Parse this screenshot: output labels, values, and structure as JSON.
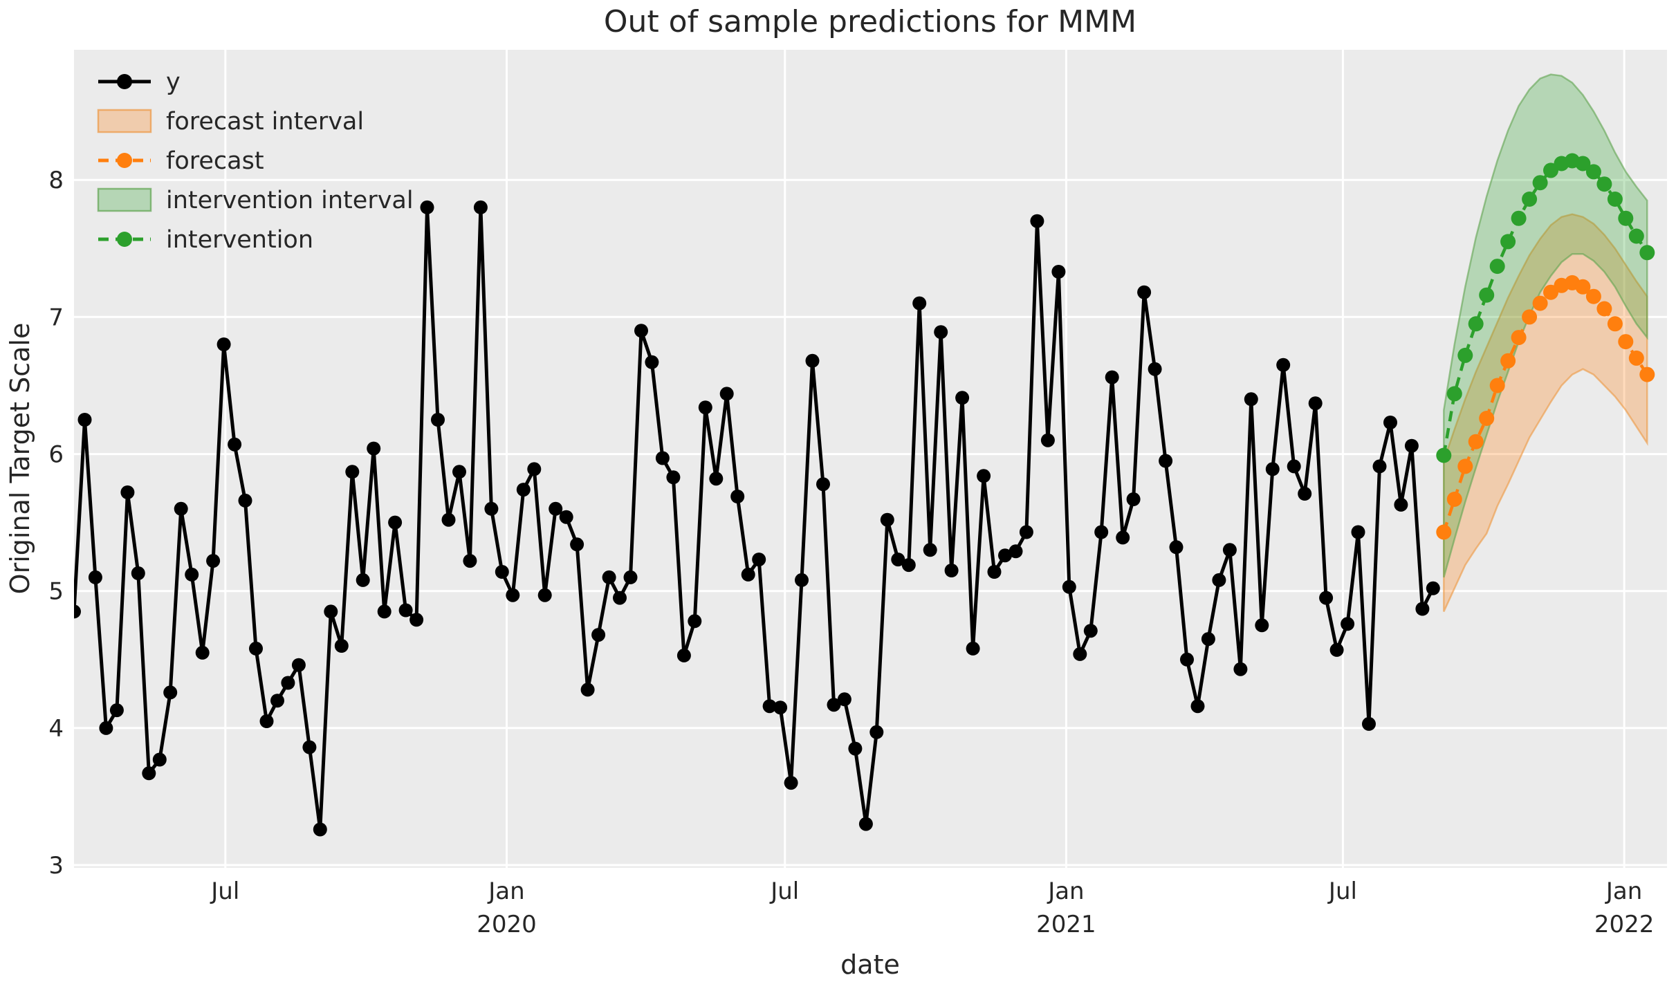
{
  "figure": {
    "background": "#ffffff",
    "axes_background": "#ebebeb",
    "grid_color": "#ffffff",
    "text_color": "#262626"
  },
  "legend": {
    "position": "upper-left",
    "items": [
      {
        "label": "y",
        "glyph": "line-marker-icon",
        "type": "line",
        "color": "#000000"
      },
      {
        "label": "forecast interval",
        "glyph": "patch-icon",
        "type": "patch",
        "color": "rgba(255,127,14,0.28)",
        "edge": "rgba(237,151,65,0.7)"
      },
      {
        "label": "forecast",
        "glyph": "dashed-marker-icon",
        "type": "dashed",
        "color": "#ff7f0e"
      },
      {
        "label": "intervention interval",
        "glyph": "patch-icon",
        "type": "patch",
        "color": "rgba(44,160,44,0.28)",
        "edge": "rgba(96,164,80,0.7)"
      },
      {
        "label": "intervention",
        "glyph": "dashed-marker-icon",
        "type": "dashed",
        "color": "#2ca02c"
      }
    ]
  },
  "chart_data": {
    "type": "line",
    "title": "Out of sample predictions for MMM",
    "xlabel": "date",
    "ylabel": "Original Target Scale",
    "x_domain": [
      "2019-03-24",
      "2022-01-29"
    ],
    "ylim": [
      2.98,
      8.95
    ],
    "grid": true,
    "yticks": [
      3,
      4,
      5,
      6,
      7,
      8
    ],
    "xticks": [
      {
        "date": "2019-07-01",
        "label": "Jul"
      },
      {
        "date": "2020-01-01",
        "label": "Jan",
        "sublabel": "2020"
      },
      {
        "date": "2020-07-01",
        "label": "Jul"
      },
      {
        "date": "2021-01-01",
        "label": "Jan",
        "sublabel": "2021"
      },
      {
        "date": "2021-07-01",
        "label": "Jul"
      },
      {
        "date": "2022-01-01",
        "label": "Jan",
        "sublabel": "2022"
      }
    ],
    "series": [
      {
        "name": "y",
        "type": "line-marker",
        "color": "#000000",
        "start": "2019-03-24",
        "freq_days": 7,
        "values": [
          4.85,
          6.25,
          5.1,
          4.0,
          4.13,
          5.72,
          5.13,
          3.67,
          3.77,
          4.26,
          5.6,
          5.12,
          4.55,
          5.22,
          6.8,
          6.07,
          5.66,
          4.58,
          4.05,
          4.2,
          4.33,
          4.46,
          3.86,
          3.26,
          4.85,
          4.6,
          5.87,
          5.08,
          6.04,
          4.85,
          5.5,
          4.86,
          4.79,
          7.8,
          6.25,
          5.52,
          5.87,
          5.22,
          7.8,
          5.6,
          5.14,
          4.97,
          5.74,
          5.89,
          4.97,
          5.6,
          5.54,
          5.34,
          4.28,
          4.68,
          5.1,
          4.95,
          5.1,
          6.9,
          6.67,
          5.97,
          5.83,
          4.53,
          4.78,
          6.34,
          5.82,
          6.44,
          5.69,
          5.12,
          5.23,
          4.16,
          4.15,
          3.6,
          5.08,
          6.68,
          5.78,
          4.17,
          4.21,
          3.85,
          3.3,
          3.97,
          5.52,
          5.23,
          5.19,
          7.1,
          5.3,
          6.89,
          5.15,
          6.41,
          4.58,
          5.84,
          5.14,
          5.26,
          5.29,
          5.43,
          7.7,
          6.1,
          7.33,
          5.03,
          4.54,
          4.71,
          5.43,
          6.56,
          5.39,
          5.67,
          7.18,
          6.62,
          5.95,
          5.32,
          4.5,
          4.16,
          4.65,
          5.08,
          5.3,
          4.43,
          6.4,
          4.75,
          5.89,
          6.65,
          5.91,
          5.71,
          6.37,
          4.95,
          4.57,
          4.76,
          5.43,
          4.03,
          5.91,
          6.23,
          5.63,
          6.06,
          4.87,
          5.02
        ]
      },
      {
        "name": "forecast",
        "type": "dashed-marker",
        "color": "#ff7f0e",
        "start": "2021-09-05",
        "freq_days": 7,
        "values": [
          5.43,
          5.67,
          5.91,
          6.09,
          6.26,
          6.5,
          6.68,
          6.85,
          7.0,
          7.1,
          7.18,
          7.23,
          7.25,
          7.22,
          7.15,
          7.06,
          6.95,
          6.82,
          6.7,
          6.58
        ]
      },
      {
        "name": "intervention",
        "type": "dashed-marker",
        "color": "#2ca02c",
        "start": "2021-09-05",
        "freq_days": 7,
        "values": [
          5.99,
          6.44,
          6.72,
          6.95,
          7.16,
          7.37,
          7.55,
          7.72,
          7.86,
          7.98,
          8.07,
          8.12,
          8.14,
          8.12,
          8.06,
          7.97,
          7.86,
          7.72,
          7.59,
          7.47
        ]
      }
    ],
    "bands": [
      {
        "name": "forecast interval",
        "fill": "rgba(255,127,14,0.28)",
        "edge": "rgba(237,151,65,0.6)",
        "start": "2021-09-05",
        "freq_days": 7,
        "lower": [
          4.85,
          5.02,
          5.19,
          5.31,
          5.42,
          5.62,
          5.78,
          5.95,
          6.12,
          6.25,
          6.38,
          6.5,
          6.58,
          6.62,
          6.58,
          6.5,
          6.42,
          6.32,
          6.2,
          6.08
        ],
        "upper": [
          5.95,
          6.18,
          6.4,
          6.6,
          6.78,
          6.96,
          7.14,
          7.3,
          7.45,
          7.57,
          7.67,
          7.73,
          7.75,
          7.73,
          7.68,
          7.6,
          7.5,
          7.38,
          7.26,
          7.15
        ]
      },
      {
        "name": "intervention interval",
        "fill": "rgba(44,160,44,0.28)",
        "edge": "rgba(96,164,80,0.6)",
        "start": "2021-09-05",
        "freq_days": 7,
        "lower": [
          5.1,
          5.38,
          5.65,
          5.9,
          6.14,
          6.38,
          6.6,
          6.82,
          7.01,
          7.18,
          7.3,
          7.4,
          7.46,
          7.46,
          7.41,
          7.33,
          7.22,
          7.08,
          6.95,
          6.85
        ],
        "upper": [
          6.32,
          6.8,
          7.22,
          7.58,
          7.88,
          8.14,
          8.36,
          8.54,
          8.66,
          8.74,
          8.77,
          8.76,
          8.71,
          8.62,
          8.5,
          8.36,
          8.2,
          8.06,
          7.95,
          7.85
        ]
      }
    ]
  }
}
